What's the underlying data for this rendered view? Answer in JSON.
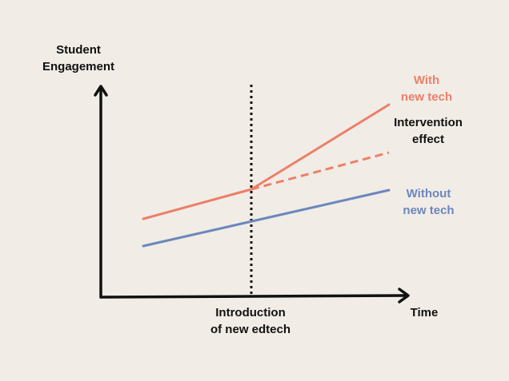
{
  "labels": {
    "y_axis": [
      "Student",
      "Engagement"
    ],
    "x_axis": "Time",
    "event": [
      "Introduction",
      "of new edtech"
    ],
    "with_tech": [
      "With",
      "new tech"
    ],
    "without_tech": [
      "Without",
      "new tech"
    ],
    "intervention": [
      "Intervention",
      "effect"
    ]
  },
  "colors": {
    "background": "#f1ece6",
    "axis": "#111111",
    "with_tech": "#ec8068",
    "without_tech": "#6b87bd",
    "text": "#111111"
  }
}
